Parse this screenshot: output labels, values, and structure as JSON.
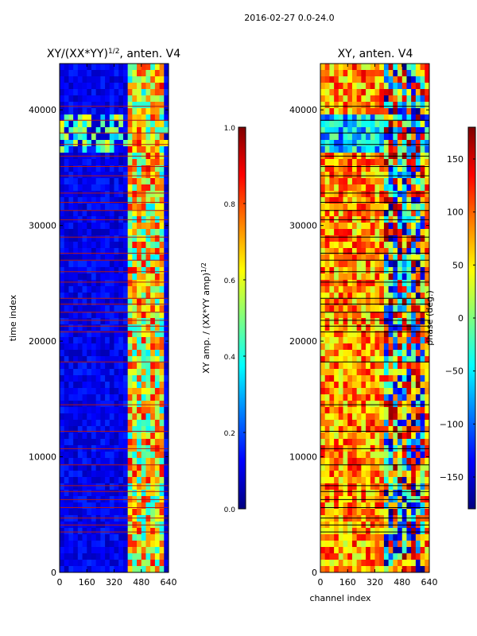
{
  "suptitle": "2016-02-27 0.0-24.0",
  "colors": {
    "jet": [
      "#00007f",
      "#0000ff",
      "#007fff",
      "#00ffff",
      "#7fff7f",
      "#ffff00",
      "#ff7f00",
      "#ff0000",
      "#7f0000"
    ],
    "flag_line_left": "#b01818",
    "flag_line_right": "#000000"
  },
  "chart_data": [
    {
      "type": "heatmap",
      "title_main": "XY/(XX*YY)",
      "title_sup": "1/2",
      "title_tail": ", anten. V4",
      "xlabel": "",
      "ylabel": "time index",
      "xlim": [
        0,
        640
      ],
      "ylim": [
        0,
        44000
      ],
      "xticks": [
        0,
        160,
        320,
        480,
        640
      ],
      "yticks": [
        0,
        10000,
        20000,
        30000,
        40000
      ],
      "rfi_band_channels": [
        410,
        610
      ],
      "flagged_time_indices": [
        3500,
        4100,
        4700,
        5600,
        6300,
        7000,
        7500,
        9300,
        10700,
        12200,
        14500,
        18200,
        20800,
        21300,
        21800,
        22500,
        23200,
        23700,
        25100,
        26000,
        27000,
        27600,
        29000,
        30500,
        31300,
        32000,
        32800,
        34300,
        35100,
        36000,
        37000,
        38000,
        39100,
        40300
      ],
      "colorbar": {
        "label": "XY amp. / (XX*YY amp)",
        "label_sup": "1/2",
        "range": [
          0.0,
          1.0
        ],
        "ticks": [
          "0.0",
          "0.2",
          "0.4",
          "0.6",
          "0.8",
          "1.0"
        ]
      }
    },
    {
      "type": "heatmap",
      "title_main": "XY, anten. V4",
      "title_sup": "",
      "title_tail": "",
      "xlabel": "channel index",
      "ylabel": "",
      "xlim": [
        0,
        640
      ],
      "ylim": [
        0,
        44000
      ],
      "xticks": [
        0,
        160,
        320,
        480,
        640
      ],
      "yticks": [
        0,
        10000,
        20000,
        30000,
        40000
      ],
      "rfi_band_channels": [
        380,
        620
      ],
      "flagged_time_indices": [
        3500,
        4100,
        4700,
        5600,
        6300,
        7000,
        7500,
        9300,
        10700,
        12200,
        14500,
        18200,
        20800,
        21300,
        21800,
        22500,
        23200,
        23700,
        25100,
        26000,
        27000,
        27600,
        29000,
        30500,
        31300,
        32000,
        32800,
        34300,
        35100,
        36000,
        37000,
        38000,
        39100,
        40300
      ],
      "colorbar": {
        "label": "phase (deg.)",
        "label_sup": "",
        "range": [
          -180,
          180
        ],
        "ticks": [
          "−150",
          "−100",
          "−50",
          "0",
          "50",
          "100",
          "150"
        ]
      }
    }
  ]
}
